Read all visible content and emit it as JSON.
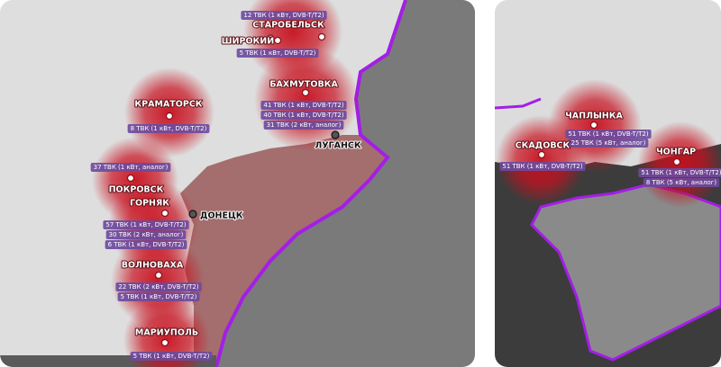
{
  "left_panel": {
    "cities": [
      {
        "name": "СТАРОБЕЛЬСК",
        "tags": [
          "12 ТВК (1 кВт, DVB-T/T2)"
        ]
      },
      {
        "name": "ШИРОКИЙ",
        "tags": [
          "5 ТВК (1 кВт, DVB-T/T2)"
        ]
      },
      {
        "name": "БАХМУТОВКА",
        "tags": [
          "41 ТВК (1 кВт, DVB-T/T2)",
          "40 ТВК (1 кВт, DVB-T/T2)",
          "31 ТВК (2 кВт, аналог)"
        ]
      },
      {
        "name": "ЛУГАНСК"
      },
      {
        "name": "КРАМАТОРСК",
        "tags": [
          "8 ТВК (1 кВт, DVB-T/T2)"
        ]
      },
      {
        "name": "ПОКРОВСК",
        "tags": [
          "37 ТВК (1 кВт, аналог)"
        ]
      },
      {
        "name": "ГОРНЯК",
        "tags": [
          "57 ТВК (1 кВт, DVB-T/T2)",
          "30 ТВК (2 кВт, аналог)",
          "6 ТВК (1 кВт, DVB-T/T2)"
        ]
      },
      {
        "name": "ДОНЕЦК"
      },
      {
        "name": "ВОЛНОВАХА",
        "tags": [
          "22 ТВК (2 кВт, DVB-T/T2)",
          "5 ТВК (1 кВт, DVB-T/T2)"
        ]
      },
      {
        "name": "МАРИУПОЛЬ",
        "tags": [
          "5 ТВК (1 кВт, DVB-T/T2)"
        ]
      }
    ]
  },
  "right_panel": {
    "cities": [
      {
        "name": "ЧАПЛЫНКА",
        "tags": [
          "51 ТВК (1 кВт, DVB-T/T2)",
          "25 ТВК (5 кВт, аналог)"
        ]
      },
      {
        "name": "СКАДОВСК",
        "tags": [
          "51 ТВК (1 кВт, DVB-T/T2)"
        ]
      },
      {
        "name": "ЧОНГАР",
        "tags": [
          "51 ТВК (1 кВт, DVB-T/T2)",
          "8 ТВК (5 кВт, аналог)"
        ]
      }
    ]
  }
}
